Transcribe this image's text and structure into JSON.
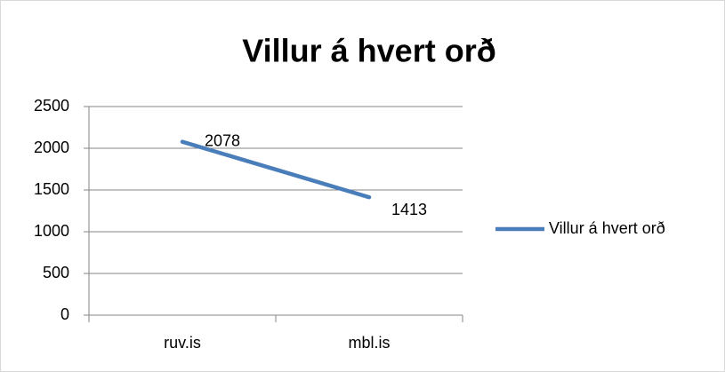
{
  "chart_data": {
    "type": "line",
    "title": "Villur á hvert orð",
    "categories": [
      "ruv.is",
      "mbl.is"
    ],
    "series": [
      {
        "name": "Villur á hvert orð",
        "color": "#4a7ebb",
        "values": [
          2078,
          1413
        ]
      }
    ],
    "ylim": [
      0,
      2500
    ],
    "yticks": [
      0,
      500,
      1000,
      1500,
      2000,
      2500
    ],
    "grid": true,
    "legend": "right"
  }
}
